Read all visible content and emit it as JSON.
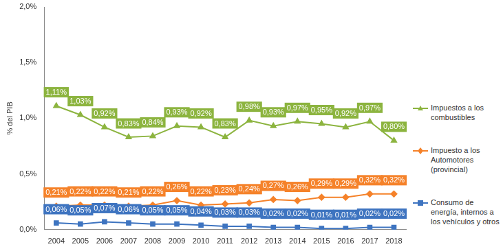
{
  "chart_data": {
    "type": "line",
    "y_label": "% del PIB",
    "categories": [
      "2004",
      "2005",
      "2006",
      "2007",
      "2008",
      "2009",
      "2010",
      "2011",
      "2012",
      "2013",
      "2014",
      "2015",
      "2016",
      "2017",
      "2018"
    ],
    "series": [
      {
        "name": "Impuestos a los combustibles",
        "color": "#8cb43f",
        "marker": "triangle",
        "values": [
          1.11,
          1.03,
          0.92,
          0.83,
          0.84,
          0.93,
          0.92,
          0.83,
          0.98,
          0.93,
          0.97,
          0.95,
          0.92,
          0.97,
          0.8
        ],
        "value_labels": [
          "1,11%",
          "1,03%",
          "0,92%",
          "0,83%",
          "0,84%",
          "0,93%",
          "0,92%",
          "0,83%",
          "0,98%",
          "0,93%",
          "0,97%",
          "0,95%",
          "0,92%",
          "0,97%",
          "0,80%"
        ]
      },
      {
        "name": "Impuesto a los Automotores (provincial)",
        "color": "#f5822a",
        "marker": "diamond",
        "values": [
          0.21,
          0.22,
          0.22,
          0.21,
          0.22,
          0.26,
          0.22,
          0.23,
          0.24,
          0.27,
          0.26,
          0.29,
          0.29,
          0.32,
          0.32
        ],
        "value_labels": [
          "0,21%",
          "0,22%",
          "0,22%",
          "0,21%",
          "0,22%",
          "0,26%",
          "0,22%",
          "0,23%",
          "0,24%",
          "0,27%",
          "0,26%",
          "0,29%",
          "0,29%",
          "0,32%",
          "0,32%"
        ]
      },
      {
        "name": "Consumo de energía, internos a los vehículos y otros",
        "color": "#3e74c0",
        "marker": "square",
        "values": [
          0.06,
          0.05,
          0.07,
          0.06,
          0.05,
          0.05,
          0.04,
          0.03,
          0.03,
          0.02,
          0.02,
          0.01,
          0.01,
          0.02,
          0.02
        ],
        "value_labels": [
          "0,06%",
          "0,05%",
          "0,07%",
          "0,06%",
          "0,05%",
          "0,05%",
          "0,04%",
          "0,03%",
          "0,03%",
          "0,02%",
          "0,02%",
          "0,01%",
          "0,01%",
          "0,02%",
          "0,02%"
        ]
      }
    ],
    "ylim": [
      0,
      2
    ],
    "yticks": [
      {
        "value": 0,
        "label": "0,0%"
      },
      {
        "value": 0.5,
        "label": "0,5%"
      },
      {
        "value": 1,
        "label": "1,0%"
      },
      {
        "value": 1.5,
        "label": "1,5%"
      },
      {
        "value": 2,
        "label": "2,0%"
      }
    ],
    "grid": false,
    "legend": "right",
    "data_labels": true
  }
}
